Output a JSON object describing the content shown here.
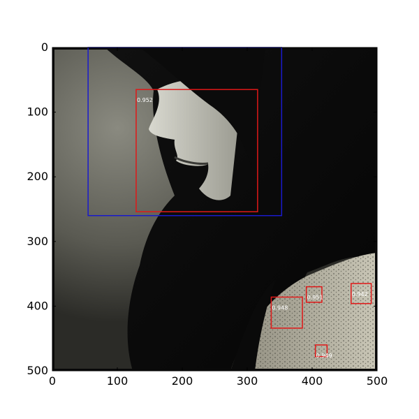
{
  "axes": {
    "x_ticks": [
      "0",
      "100",
      "200",
      "300",
      "400",
      "500"
    ],
    "y_ticks": [
      "0",
      "100",
      "200",
      "300",
      "400",
      "500"
    ],
    "x_range": [
      0,
      500
    ],
    "y_range": [
      0,
      500
    ],
    "y_inverted": true
  },
  "photo": {
    "description": "grayscale profile portrait of a woman with long dark hair and a patterned top"
  },
  "detections": [
    {
      "label_text": "",
      "color": "#1a1acc",
      "x": 55,
      "y": 0,
      "w": 298,
      "h": 260
    },
    {
      "label_text": "0.952",
      "color": "#e01818",
      "x": 129,
      "y": 65,
      "w": 187,
      "h": 189
    },
    {
      "label_text": "0.948",
      "color": "#e01818",
      "x": 337,
      "y": 386,
      "w": 48,
      "h": 48
    },
    {
      "label_text": "0.951",
      "color": "#e01818",
      "x": 391,
      "y": 370,
      "w": 24,
      "h": 24
    },
    {
      "label_text": "0.942",
      "color": "#e01818",
      "x": 460,
      "y": 365,
      "w": 31,
      "h": 31
    },
    {
      "label_text": "0.949",
      "color": "#e01818",
      "x": 405,
      "y": 460,
      "w": 18,
      "h": 18
    }
  ]
}
